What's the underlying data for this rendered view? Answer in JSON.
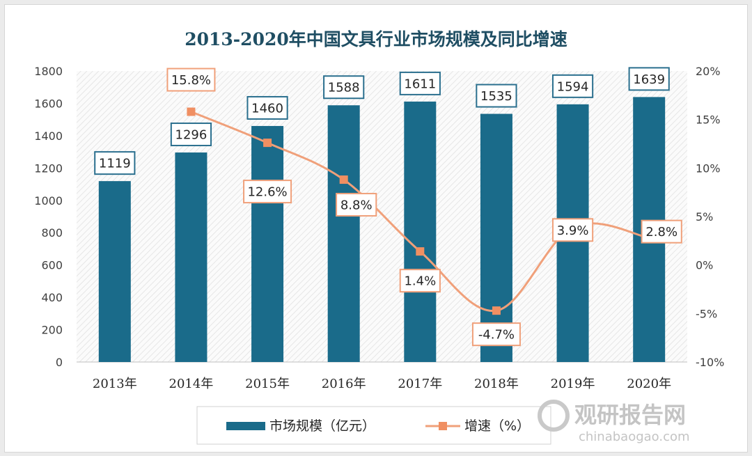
{
  "chart_data": {
    "type": "bar",
    "title": "2013-2020年中国文具行业市场规模及同比增速",
    "categories": [
      "2013年",
      "2014年",
      "2015年",
      "2016年",
      "2017年",
      "2018年",
      "2019年",
      "2020年"
    ],
    "series": [
      {
        "name": "市场规模（亿元）",
        "type": "bar",
        "axis": "left",
        "values": [
          1119,
          1296,
          1460,
          1588,
          1611,
          1535,
          1594,
          1639
        ],
        "labels": [
          "1119",
          "1296",
          "1460",
          "1588",
          "1611",
          "1535",
          "1594",
          "1639"
        ]
      },
      {
        "name": "增速（%）",
        "type": "line",
        "axis": "right",
        "values": [
          null,
          15.8,
          12.6,
          8.8,
          1.4,
          -4.7,
          3.9,
          2.8
        ],
        "labels": [
          "",
          "15.8%",
          "12.6%",
          "8.8%",
          "1.4%",
          "-4.7%",
          "3.9%",
          "2.8%"
        ]
      }
    ],
    "y_left": {
      "min": 0,
      "max": 1800,
      "step": 200,
      "ticks": [
        "0",
        "200",
        "400",
        "600",
        "800",
        "1000",
        "1200",
        "1400",
        "1600",
        "1800"
      ]
    },
    "y_right": {
      "min": -10,
      "max": 20,
      "step": 5,
      "ticks": [
        "-10%",
        "-5%",
        "0%",
        "5%",
        "10%",
        "15%",
        "20%"
      ]
    },
    "legend_position": "bottom",
    "colors": {
      "bar": "#1a6b8a",
      "line": "#f0a07a",
      "marker": "#f08f62",
      "title": "#1f4e63"
    }
  },
  "watermark": {
    "name": "观研报告网",
    "url": "chinabaogao.com"
  }
}
